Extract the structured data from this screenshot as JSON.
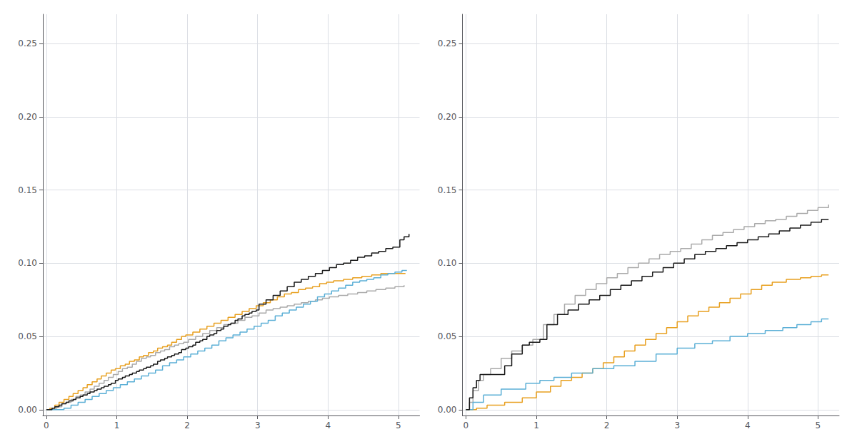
{
  "chart_data": [
    {
      "type": "step",
      "xlim": [
        -0.05,
        5.3
      ],
      "ylim": [
        -0.004,
        0.27
      ],
      "xticks": [
        0,
        1,
        2,
        3,
        4,
        5
      ],
      "yticks": [
        {
          "value": 0.0,
          "label": "0.00"
        },
        {
          "value": 0.05,
          "label": "0.05"
        },
        {
          "value": 0.1,
          "label": "0.10"
        },
        {
          "value": 0.15,
          "label": "0.15"
        },
        {
          "value": 0.2,
          "label": "0.20"
        },
        {
          "value": 0.25,
          "label": "0.25"
        }
      ],
      "grid": true,
      "series": [
        {
          "color": "#aaaaaa",
          "x": [
            0,
            0.08,
            0.15,
            0.22,
            0.28,
            0.35,
            0.42,
            0.48,
            0.55,
            0.62,
            0.68,
            0.75,
            0.82,
            0.88,
            0.95,
            1.02,
            1.08,
            1.15,
            1.22,
            1.28,
            1.35,
            1.42,
            1.48,
            1.55,
            1.62,
            1.68,
            1.75,
            1.82,
            1.88,
            1.95,
            2.02,
            2.12,
            2.22,
            2.32,
            2.42,
            2.52,
            2.62,
            2.72,
            2.82,
            2.92,
            3.02,
            3.12,
            3.22,
            3.32,
            3.42,
            3.52,
            3.62,
            3.72,
            3.82,
            3.92,
            4.02,
            4.15,
            4.28,
            4.42,
            4.55,
            4.68,
            4.82,
            4.95,
            5.08
          ],
          "values": [
            0,
            0.001,
            0.002,
            0.004,
            0.005,
            0.007,
            0.009,
            0.01,
            0.012,
            0.014,
            0.016,
            0.018,
            0.02,
            0.022,
            0.024,
            0.026,
            0.028,
            0.029,
            0.031,
            0.033,
            0.035,
            0.036,
            0.037,
            0.039,
            0.04,
            0.041,
            0.043,
            0.044,
            0.045,
            0.046,
            0.048,
            0.05,
            0.052,
            0.054,
            0.056,
            0.058,
            0.059,
            0.061,
            0.063,
            0.064,
            0.066,
            0.068,
            0.069,
            0.07,
            0.071,
            0.072,
            0.073,
            0.074,
            0.075,
            0.076,
            0.077,
            0.078,
            0.079,
            0.08,
            0.081,
            0.082,
            0.083,
            0.084,
            0.085
          ]
        },
        {
          "color": "#E8A020",
          "x": [
            0,
            0.05,
            0.12,
            0.18,
            0.25,
            0.32,
            0.38,
            0.45,
            0.52,
            0.58,
            0.65,
            0.72,
            0.78,
            0.85,
            0.92,
            0.98,
            1.05,
            1.12,
            1.18,
            1.25,
            1.32,
            1.38,
            1.45,
            1.52,
            1.58,
            1.65,
            1.72,
            1.78,
            1.85,
            1.92,
            1.98,
            2.08,
            2.18,
            2.28,
            2.38,
            2.48,
            2.58,
            2.68,
            2.78,
            2.88,
            2.98,
            3.08,
            3.18,
            3.28,
            3.38,
            3.48,
            3.58,
            3.68,
            3.78,
            3.88,
            3.98,
            4.08,
            4.22,
            4.35,
            4.48,
            4.62,
            4.75,
            4.88,
            5.02,
            5.1
          ],
          "values": [
            0,
            0.001,
            0.003,
            0.005,
            0.007,
            0.009,
            0.011,
            0.013,
            0.015,
            0.017,
            0.019,
            0.021,
            0.023,
            0.025,
            0.027,
            0.028,
            0.03,
            0.031,
            0.033,
            0.034,
            0.036,
            0.037,
            0.039,
            0.04,
            0.042,
            0.043,
            0.044,
            0.046,
            0.048,
            0.05,
            0.051,
            0.053,
            0.055,
            0.057,
            0.059,
            0.061,
            0.063,
            0.065,
            0.067,
            0.069,
            0.071,
            0.073,
            0.075,
            0.077,
            0.079,
            0.08,
            0.082,
            0.083,
            0.084,
            0.086,
            0.087,
            0.088,
            0.089,
            0.09,
            0.091,
            0.092,
            0.093,
            0.093,
            0.093,
            0.093
          ]
        },
        {
          "color": "#5BAFD6",
          "x": [
            0,
            0.15,
            0.25,
            0.35,
            0.45,
            0.55,
            0.65,
            0.75,
            0.85,
            0.95,
            1.05,
            1.15,
            1.25,
            1.35,
            1.45,
            1.55,
            1.65,
            1.75,
            1.85,
            1.95,
            2.05,
            2.15,
            2.25,
            2.35,
            2.45,
            2.55,
            2.65,
            2.75,
            2.85,
            2.95,
            3.05,
            3.15,
            3.25,
            3.35,
            3.45,
            3.55,
            3.65,
            3.75,
            3.85,
            3.95,
            4.05,
            4.15,
            4.25,
            4.35,
            4.45,
            4.55,
            4.65,
            4.75,
            4.85,
            4.95,
            5.05,
            5.12
          ],
          "values": [
            0,
            0.0,
            0.001,
            0.003,
            0.005,
            0.007,
            0.009,
            0.011,
            0.013,
            0.015,
            0.017,
            0.019,
            0.021,
            0.023,
            0.025,
            0.027,
            0.03,
            0.032,
            0.034,
            0.036,
            0.038,
            0.04,
            0.042,
            0.044,
            0.047,
            0.049,
            0.051,
            0.053,
            0.055,
            0.057,
            0.059,
            0.061,
            0.064,
            0.066,
            0.068,
            0.07,
            0.072,
            0.074,
            0.077,
            0.079,
            0.081,
            0.083,
            0.085,
            0.087,
            0.088,
            0.089,
            0.09,
            0.092,
            0.093,
            0.094,
            0.095,
            0.095
          ]
        },
        {
          "color": "#1a1a1a",
          "x": [
            0,
            0.08,
            0.12,
            0.18,
            0.22,
            0.28,
            0.32,
            0.38,
            0.42,
            0.48,
            0.52,
            0.58,
            0.62,
            0.68,
            0.72,
            0.78,
            0.82,
            0.88,
            0.92,
            0.98,
            1.02,
            1.08,
            1.12,
            1.18,
            1.22,
            1.28,
            1.32,
            1.38,
            1.42,
            1.48,
            1.52,
            1.58,
            1.62,
            1.68,
            1.72,
            1.78,
            1.82,
            1.88,
            1.92,
            1.98,
            2.02,
            2.08,
            2.12,
            2.18,
            2.22,
            2.28,
            2.32,
            2.38,
            2.42,
            2.48,
            2.52,
            2.58,
            2.62,
            2.68,
            2.72,
            2.78,
            2.82,
            2.88,
            2.92,
            2.98,
            3.02,
            3.12,
            3.22,
            3.32,
            3.42,
            3.52,
            3.62,
            3.72,
            3.82,
            3.92,
            4.02,
            4.12,
            4.22,
            4.32,
            4.42,
            4.52,
            4.62,
            4.72,
            4.82,
            4.92,
            5.02,
            5.08,
            5.15
          ],
          "values": [
            0,
            0.001,
            0.002,
            0.003,
            0.004,
            0.005,
            0.006,
            0.007,
            0.008,
            0.009,
            0.01,
            0.011,
            0.012,
            0.013,
            0.014,
            0.015,
            0.016,
            0.017,
            0.018,
            0.02,
            0.021,
            0.022,
            0.023,
            0.024,
            0.025,
            0.026,
            0.027,
            0.028,
            0.029,
            0.03,
            0.031,
            0.033,
            0.034,
            0.035,
            0.036,
            0.037,
            0.038,
            0.039,
            0.041,
            0.042,
            0.043,
            0.044,
            0.046,
            0.047,
            0.048,
            0.05,
            0.051,
            0.052,
            0.054,
            0.055,
            0.057,
            0.058,
            0.059,
            0.061,
            0.062,
            0.064,
            0.065,
            0.066,
            0.067,
            0.068,
            0.072,
            0.075,
            0.078,
            0.081,
            0.084,
            0.087,
            0.089,
            0.091,
            0.093,
            0.095,
            0.097,
            0.099,
            0.1,
            0.102,
            0.104,
            0.105,
            0.107,
            0.108,
            0.11,
            0.111,
            0.116,
            0.118,
            0.12
          ]
        }
      ]
    },
    {
      "type": "step",
      "xlim": [
        -0.05,
        5.3
      ],
      "ylim": [
        -0.004,
        0.27
      ],
      "xticks": [
        0,
        1,
        2,
        3,
        4,
        5
      ],
      "yticks": [
        {
          "value": 0.0,
          "label": "0.00"
        },
        {
          "value": 0.05,
          "label": "0.05"
        },
        {
          "value": 0.1,
          "label": "0.10"
        },
        {
          "value": 0.15,
          "label": "0.15"
        },
        {
          "value": 0.2,
          "label": "0.20"
        },
        {
          "value": 0.25,
          "label": "0.25"
        }
      ],
      "grid": true,
      "series": [
        {
          "color": "#aaaaaa",
          "x": [
            0,
            0.05,
            0.1,
            0.18,
            0.25,
            0.35,
            0.5,
            0.65,
            0.8,
            0.95,
            1.1,
            1.25,
            1.4,
            1.55,
            1.7,
            1.85,
            2.0,
            2.15,
            2.3,
            2.45,
            2.6,
            2.75,
            2.9,
            3.05,
            3.2,
            3.35,
            3.5,
            3.65,
            3.8,
            3.95,
            4.1,
            4.25,
            4.4,
            4.55,
            4.7,
            4.85,
            5.0,
            5.15
          ],
          "values": [
            0,
            0.005,
            0.013,
            0.02,
            0.024,
            0.028,
            0.035,
            0.04,
            0.044,
            0.048,
            0.058,
            0.065,
            0.072,
            0.078,
            0.082,
            0.086,
            0.09,
            0.093,
            0.097,
            0.1,
            0.103,
            0.106,
            0.108,
            0.11,
            0.113,
            0.116,
            0.119,
            0.121,
            0.123,
            0.125,
            0.127,
            0.129,
            0.13,
            0.132,
            0.134,
            0.136,
            0.138,
            0.14
          ]
        },
        {
          "color": "#E8A020",
          "x": [
            0,
            0.05,
            0.15,
            0.3,
            0.55,
            0.8,
            1.0,
            1.2,
            1.35,
            1.5,
            1.65,
            1.8,
            1.95,
            2.1,
            2.25,
            2.4,
            2.55,
            2.7,
            2.85,
            3.0,
            3.15,
            3.3,
            3.45,
            3.6,
            3.75,
            3.9,
            4.05,
            4.2,
            4.35,
            4.55,
            4.75,
            4.9,
            5.05,
            5.15
          ],
          "values": [
            0,
            0.0,
            0.001,
            0.003,
            0.005,
            0.008,
            0.012,
            0.016,
            0.02,
            0.022,
            0.025,
            0.028,
            0.032,
            0.036,
            0.04,
            0.044,
            0.048,
            0.052,
            0.056,
            0.06,
            0.064,
            0.067,
            0.07,
            0.073,
            0.076,
            0.079,
            0.082,
            0.085,
            0.087,
            0.089,
            0.09,
            0.091,
            0.092,
            0.092
          ]
        },
        {
          "color": "#5BAFD6",
          "x": [
            0,
            0.1,
            0.25,
            0.5,
            0.85,
            1.05,
            1.25,
            1.5,
            1.8,
            2.1,
            2.4,
            2.7,
            3.0,
            3.25,
            3.5,
            3.75,
            4.0,
            4.25,
            4.5,
            4.7,
            4.9,
            5.05,
            5.15
          ],
          "values": [
            0,
            0.005,
            0.01,
            0.014,
            0.018,
            0.02,
            0.022,
            0.025,
            0.028,
            0.03,
            0.033,
            0.038,
            0.042,
            0.045,
            0.047,
            0.05,
            0.052,
            0.054,
            0.056,
            0.058,
            0.06,
            0.062,
            0.062
          ]
        },
        {
          "color": "#1a1a1a",
          "x": [
            0,
            0.05,
            0.1,
            0.15,
            0.2,
            0.3,
            0.45,
            0.55,
            0.65,
            0.8,
            0.9,
            1.05,
            1.15,
            1.3,
            1.45,
            1.6,
            1.75,
            1.9,
            2.05,
            2.2,
            2.35,
            2.5,
            2.65,
            2.8,
            2.95,
            3.1,
            3.25,
            3.4,
            3.55,
            3.7,
            3.85,
            4.0,
            4.15,
            4.3,
            4.45,
            4.6,
            4.75,
            4.9,
            5.05,
            5.15
          ],
          "values": [
            0,
            0.008,
            0.015,
            0.02,
            0.024,
            0.024,
            0.024,
            0.03,
            0.038,
            0.044,
            0.046,
            0.048,
            0.058,
            0.065,
            0.068,
            0.072,
            0.075,
            0.078,
            0.082,
            0.085,
            0.088,
            0.091,
            0.094,
            0.097,
            0.1,
            0.103,
            0.106,
            0.108,
            0.11,
            0.112,
            0.114,
            0.116,
            0.118,
            0.12,
            0.122,
            0.124,
            0.126,
            0.128,
            0.13,
            0.13
          ]
        }
      ]
    }
  ]
}
